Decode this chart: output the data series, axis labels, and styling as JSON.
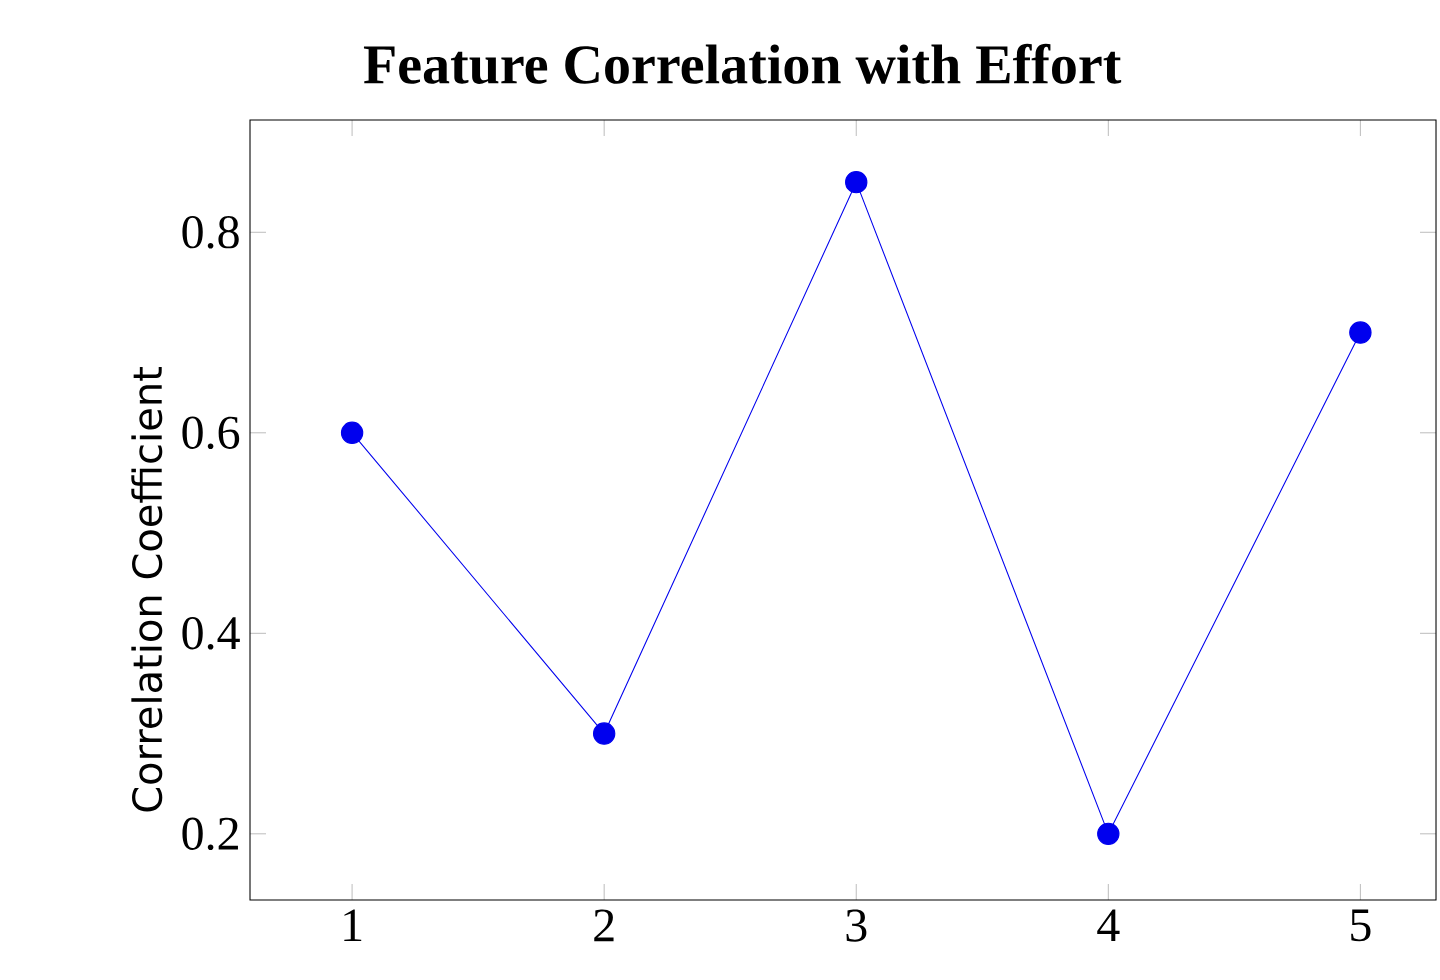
{
  "chart_data": {
    "type": "line",
    "title": "Feature Correlation with Effort",
    "ylabel": "Correlation Coefficient",
    "x": [
      1,
      2,
      3,
      4,
      5
    ],
    "series": [
      {
        "color": "#0000ee",
        "values": [
          0.6,
          0.3,
          0.85,
          0.2,
          0.7
        ]
      }
    ],
    "xlim": [
      0.595,
      5.3
    ],
    "ylim": [
      0.134,
      0.912
    ],
    "xticks": [
      1,
      2,
      3,
      4,
      5
    ],
    "yticks": [
      0.2,
      0.4,
      0.6,
      0.8
    ],
    "marker": "circle",
    "line_style": "solid"
  }
}
